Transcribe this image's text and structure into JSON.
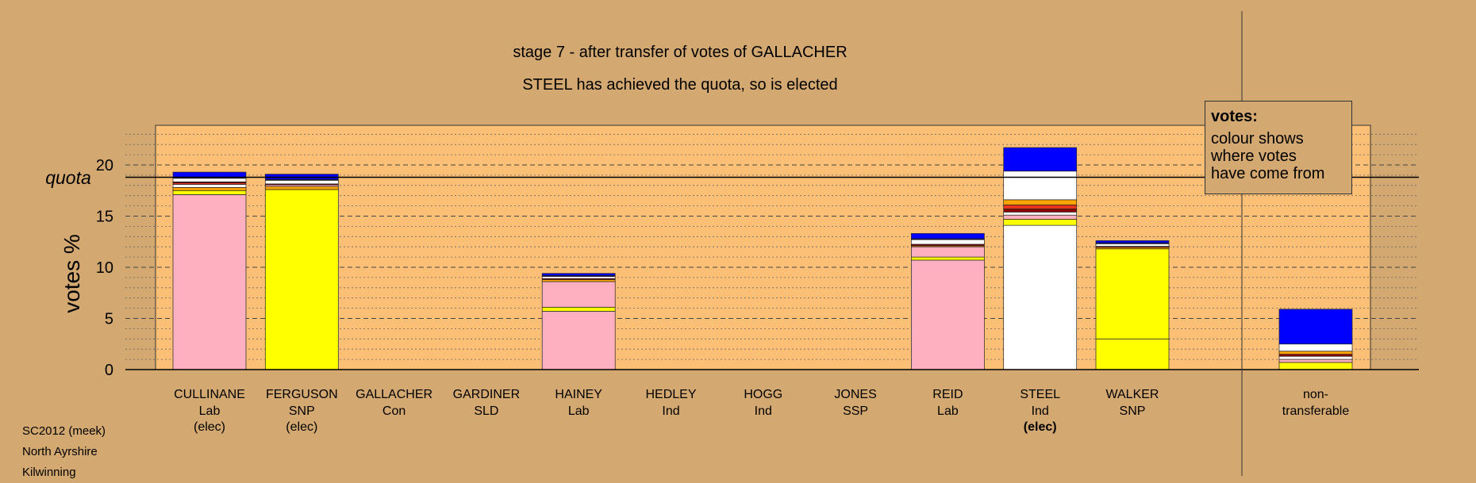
{
  "chart_data": {
    "type": "bar",
    "stacked": true,
    "title": "stage 7 - after transfer of votes of GALLACHER",
    "subtitle": "STEEL has achieved the quota, so is elected",
    "ylabel": "votes %",
    "ylim": [
      0,
      24
    ],
    "yticks": [
      0,
      5,
      10,
      15,
      20
    ],
    "quota": 18.8,
    "quota_label": "quota",
    "grid": true,
    "categories": [
      {
        "name": "CULLINANE",
        "party": "Lab",
        "status": "(elec)",
        "status_bold": false,
        "segments": [
          {
            "value": 17.1,
            "color": "#ffb0c0"
          },
          {
            "value": 0.4,
            "color": "#ffff00"
          },
          {
            "value": 0.3,
            "color": "#ffa500"
          },
          {
            "value": 0.3,
            "color": "#ffffff"
          },
          {
            "value": 0.15,
            "color": "#e8341c"
          },
          {
            "value": 0.1,
            "color": "#8b0000"
          },
          {
            "value": 0.35,
            "color": "#ffffff"
          },
          {
            "value": 0.1,
            "color": "#000080"
          },
          {
            "value": 0.5,
            "color": "#0000ff"
          }
        ]
      },
      {
        "name": "FERGUSON",
        "party": "SNP",
        "status": "(elec)",
        "status_bold": false,
        "segments": [
          {
            "value": 17.6,
            "color": "#ffff00"
          },
          {
            "value": 0.3,
            "color": "#ffa500"
          },
          {
            "value": 0.15,
            "color": "#ffb0c0"
          },
          {
            "value": 0.1,
            "color": "#8b0000"
          },
          {
            "value": 0.35,
            "color": "#ffffff"
          },
          {
            "value": 0.1,
            "color": "#000080"
          },
          {
            "value": 0.5,
            "color": "#0000ff"
          }
        ]
      },
      {
        "name": "GALLACHER",
        "party": "Con",
        "status": "",
        "status_bold": false,
        "segments": []
      },
      {
        "name": "GARDINER",
        "party": "SLD",
        "status": "",
        "status_bold": false,
        "segments": []
      },
      {
        "name": "HAINEY",
        "party": "Lab",
        "status": "",
        "status_bold": false,
        "segments": [
          {
            "value": 5.7,
            "color": "#ffb0c0"
          },
          {
            "value": 0.4,
            "color": "#ffff00"
          },
          {
            "value": 2.5,
            "color": "#ffb0c0"
          },
          {
            "value": 0.2,
            "color": "#ffa500"
          },
          {
            "value": 0.1,
            "color": "#8b0000"
          },
          {
            "value": 0.2,
            "color": "#ffffff"
          },
          {
            "value": 0.1,
            "color": "#000080"
          },
          {
            "value": 0.2,
            "color": "#0000ff"
          }
        ]
      },
      {
        "name": "HEDLEY",
        "party": "Ind",
        "status": "",
        "status_bold": false,
        "segments": []
      },
      {
        "name": "HOGG",
        "party": "Ind",
        "status": "",
        "status_bold": false,
        "segments": []
      },
      {
        "name": "JONES",
        "party": "SSP",
        "status": "",
        "status_bold": false,
        "segments": []
      },
      {
        "name": "REID",
        "party": "Lab",
        "status": "",
        "status_bold": false,
        "segments": [
          {
            "value": 10.7,
            "color": "#ffb0c0"
          },
          {
            "value": 0.3,
            "color": "#ffff00"
          },
          {
            "value": 1.0,
            "color": "#ffb0c0"
          },
          {
            "value": 0.1,
            "color": "#ffa500"
          },
          {
            "value": 0.15,
            "color": "#8b0000"
          },
          {
            "value": 0.45,
            "color": "#ffffff"
          },
          {
            "value": 0.1,
            "color": "#000080"
          },
          {
            "value": 0.5,
            "color": "#0000ff"
          }
        ]
      },
      {
        "name": "STEEL",
        "party": "Ind",
        "status": "(elec)",
        "status_bold": true,
        "segments": [
          {
            "value": 14.1,
            "color": "#ffffff"
          },
          {
            "value": 0.6,
            "color": "#ffff00"
          },
          {
            "value": 0.4,
            "color": "#ffb0c0"
          },
          {
            "value": 0.3,
            "color": "#ffffff"
          },
          {
            "value": 0.3,
            "color": "#8b0000"
          },
          {
            "value": 0.4,
            "color": "#e8341c"
          },
          {
            "value": 0.5,
            "color": "#ffa500"
          },
          {
            "value": 2.8,
            "color": "#ffffff"
          },
          {
            "value": 2.3,
            "color": "#0000ff"
          }
        ]
      },
      {
        "name": "WALKER",
        "party": "SNP",
        "status": "",
        "status_bold": false,
        "segments": [
          {
            "value": 3.0,
            "color": "#ffff00"
          },
          {
            "value": 8.8,
            "color": "#ffff00"
          },
          {
            "value": 0.15,
            "color": "#ffa500"
          },
          {
            "value": 0.1,
            "color": "#8b0000"
          },
          {
            "value": 0.25,
            "color": "#ffffff"
          },
          {
            "value": 0.1,
            "color": "#000080"
          },
          {
            "value": 0.2,
            "color": "#0000ff"
          }
        ]
      }
    ],
    "nontransferable": {
      "name": "non-",
      "party": "transferable",
      "segments": [
        {
          "value": 0.7,
          "color": "#ffff00"
        },
        {
          "value": 0.3,
          "color": "#ffb0c0"
        },
        {
          "value": 0.3,
          "color": "#ffffff"
        },
        {
          "value": 0.2,
          "color": "#8b0000"
        },
        {
          "value": 0.3,
          "color": "#ffa500"
        },
        {
          "value": 0.7,
          "color": "#ffffff"
        },
        {
          "value": 3.4,
          "color": "#0000ff"
        }
      ]
    }
  },
  "legend": {
    "title": "votes:",
    "lines": [
      "colour shows",
      "where votes",
      "have come from"
    ]
  },
  "footer": {
    "lines": [
      "SC2012 (meek)",
      "North Ayrshire",
      "Kilwinning"
    ]
  },
  "colors": {
    "background": "#d4a871",
    "plot_area": "#fcbf76"
  }
}
